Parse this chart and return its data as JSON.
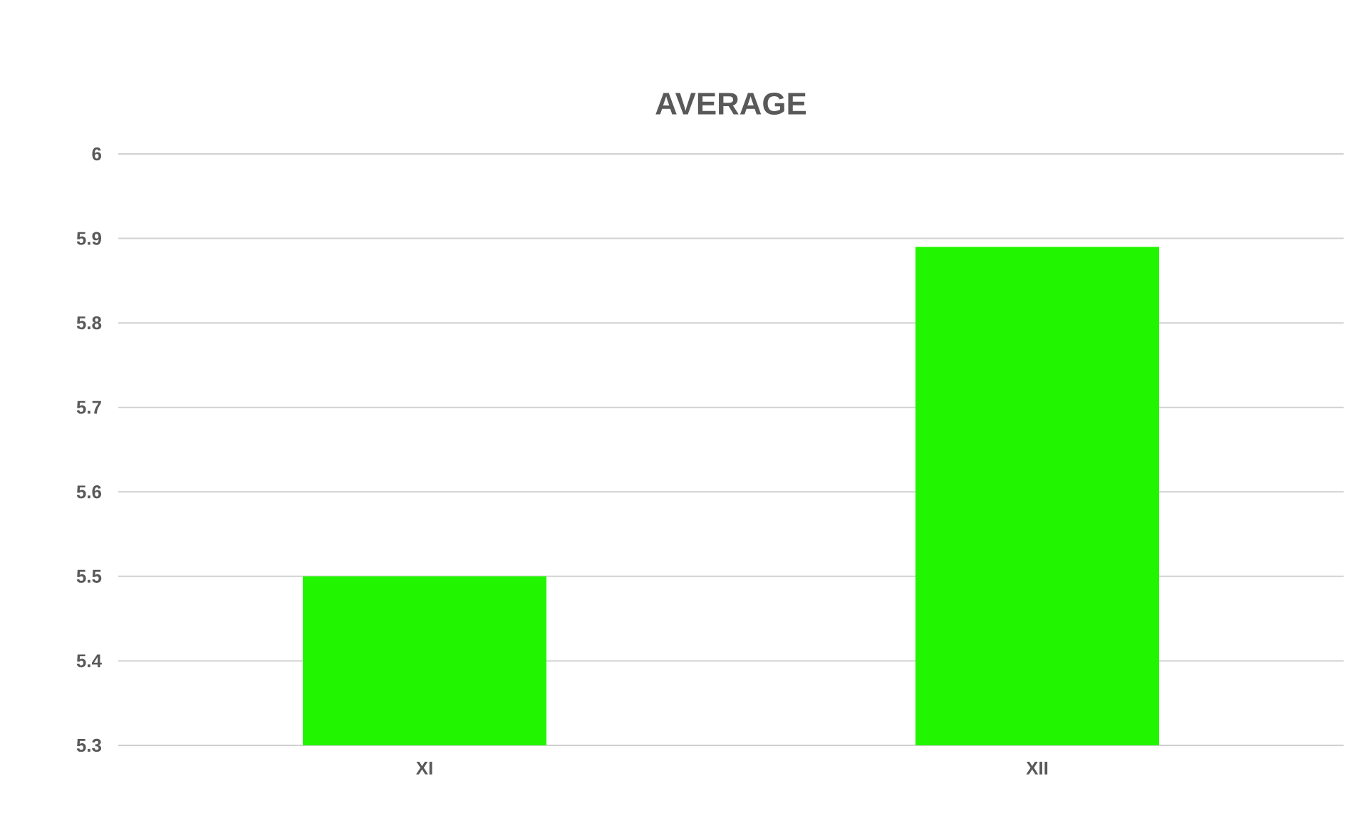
{
  "chart_data": {
    "type": "bar",
    "title": "AVERAGE",
    "categories": [
      "XI",
      "XII"
    ],
    "values": [
      5.5,
      5.89
    ],
    "color": "#22f500",
    "ylim": [
      5.3,
      6
    ],
    "yticks": [
      5.3,
      5.4,
      5.5,
      5.6,
      5.7,
      5.8,
      5.9,
      6
    ],
    "grid": "y"
  }
}
